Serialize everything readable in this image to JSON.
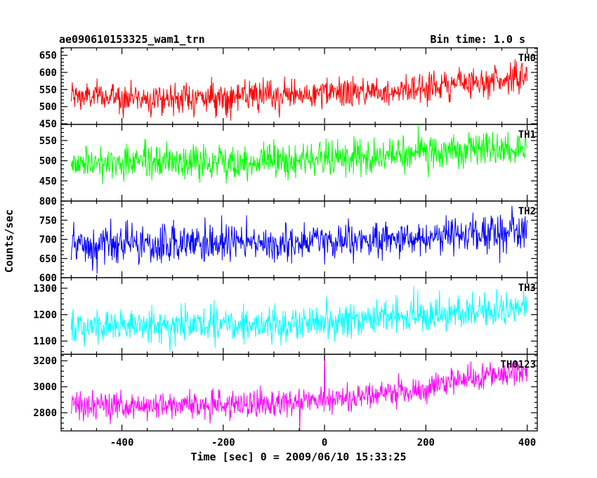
{
  "header": {
    "title": "ae090610153325_wam1_trn",
    "bin_time": "Bin time: 1.0 s"
  },
  "chart_data": {
    "type": "line",
    "xlabel": "Time [sec] 0 = 2009/06/10 15:33:25",
    "ylabel": "Counts/sec",
    "xlim": [
      -520,
      420
    ],
    "x_ticks": [
      -400,
      -200,
      0,
      200,
      400
    ],
    "x_range": [
      -500,
      400
    ],
    "bin_seconds": 1.0,
    "series": [
      {
        "name": "TH0",
        "color": "#ff0000",
        "ylim": [
          448,
          672
        ],
        "y_ticks": [
          450,
          500,
          550,
          600,
          650
        ],
        "trend": [
          [
            -500,
            530
          ],
          [
            -300,
            525
          ],
          [
            -100,
            530
          ],
          [
            100,
            545
          ],
          [
            200,
            555
          ],
          [
            300,
            575
          ],
          [
            400,
            585
          ]
        ],
        "noise_sd": 22
      },
      {
        "name": "TH1",
        "color": "#00ff00",
        "ylim": [
          400,
          590
        ],
        "y_ticks": [
          450,
          500,
          550
        ],
        "trend": [
          [
            -500,
            495
          ],
          [
            -300,
            495
          ],
          [
            -100,
            500
          ],
          [
            100,
            510
          ],
          [
            300,
            525
          ],
          [
            400,
            530
          ]
        ],
        "noise_sd": 22
      },
      {
        "name": "TH2",
        "color": "#0000ff",
        "ylim": [
          600,
          800
        ],
        "y_ticks": [
          600,
          650,
          700,
          750,
          800
        ],
        "trend": [
          [
            -500,
            680
          ],
          [
            -300,
            685
          ],
          [
            -100,
            690
          ],
          [
            100,
            695
          ],
          [
            300,
            715
          ],
          [
            400,
            725
          ]
        ],
        "noise_sd": 25
      },
      {
        "name": "TH3",
        "color": "#00ffff",
        "ylim": [
          1050,
          1340
        ],
        "y_ticks": [
          1100,
          1200,
          1300
        ],
        "trend": [
          [
            -500,
            1150
          ],
          [
            -300,
            1160
          ],
          [
            -100,
            1165
          ],
          [
            100,
            1185
          ],
          [
            300,
            1210
          ],
          [
            400,
            1225
          ]
        ],
        "noise_sd": 32
      },
      {
        "name": "TH0123",
        "color": "#ff00ff",
        "ylim": [
          2660,
          3250
        ],
        "y_ticks": [
          2800,
          3000,
          3200
        ],
        "trend": [
          [
            -500,
            2850
          ],
          [
            -300,
            2860
          ],
          [
            -100,
            2870
          ],
          [
            0,
            2890
          ],
          [
            100,
            2930
          ],
          [
            200,
            2990
          ],
          [
            300,
            3070
          ],
          [
            400,
            3120
          ]
        ],
        "noise_sd": 55
      }
    ]
  }
}
